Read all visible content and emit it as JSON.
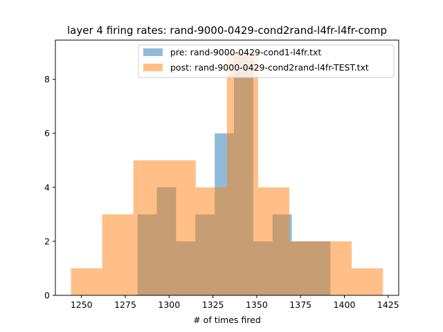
{
  "chart_data": {
    "type": "bar",
    "title": "layer 4 firing rates: rand-9000-0429-cond2rand-l4fr-l4fr-comp",
    "xlabel": "# of times fired",
    "ylabel": "",
    "xlim": [
      1235.1,
      1431.0
    ],
    "ylim": [
      0,
      9.45
    ],
    "xticks": [
      1250,
      1275,
      1300,
      1325,
      1350,
      1375,
      1400,
      1425
    ],
    "yticks": [
      0,
      2,
      4,
      6,
      8
    ],
    "grid": false,
    "legend_position": "top-right",
    "series": [
      {
        "name": "pre: rand-9000-0429-cond1-l4fr.txt",
        "color": "#1f77b4",
        "alpha": 0.5,
        "bins": [
          {
            "x0": 1282.0,
            "x1": 1293.0,
            "count": 3
          },
          {
            "x0": 1293.0,
            "x1": 1304.0,
            "count": 4
          },
          {
            "x0": 1304.0,
            "x1": 1315.0,
            "count": 2
          },
          {
            "x0": 1315.0,
            "x1": 1326.0,
            "count": 3
          },
          {
            "x0": 1326.0,
            "x1": 1337.0,
            "count": 6
          },
          {
            "x0": 1337.0,
            "x1": 1348.0,
            "count": 9
          },
          {
            "x0": 1348.0,
            "x1": 1359.0,
            "count": 2
          },
          {
            "x0": 1359.0,
            "x1": 1370.0,
            "count": 3
          },
          {
            "x0": 1370.0,
            "x1": 1381.0,
            "count": 2
          },
          {
            "x0": 1381.0,
            "x1": 1392.0,
            "count": 2
          }
        ]
      },
      {
        "name": "post: rand-9000-0429-cond2rand-l4fr-TEST.txt",
        "color": "#ff7f0e",
        "alpha": 0.5,
        "bins": [
          {
            "x0": 1244.0,
            "x1": 1261.8,
            "count": 1
          },
          {
            "x0": 1261.8,
            "x1": 1279.6,
            "count": 3
          },
          {
            "x0": 1279.6,
            "x1": 1297.4,
            "count": 5
          },
          {
            "x0": 1297.4,
            "x1": 1315.2,
            "count": 5
          },
          {
            "x0": 1315.2,
            "x1": 1333.0,
            "count": 4
          },
          {
            "x0": 1333.0,
            "x1": 1350.8,
            "count": 9
          },
          {
            "x0": 1350.8,
            "x1": 1368.6,
            "count": 4
          },
          {
            "x0": 1368.6,
            "x1": 1386.4,
            "count": 2
          },
          {
            "x0": 1386.4,
            "x1": 1404.2,
            "count": 2
          },
          {
            "x0": 1404.2,
            "x1": 1422.0,
            "count": 1
          }
        ]
      }
    ]
  }
}
